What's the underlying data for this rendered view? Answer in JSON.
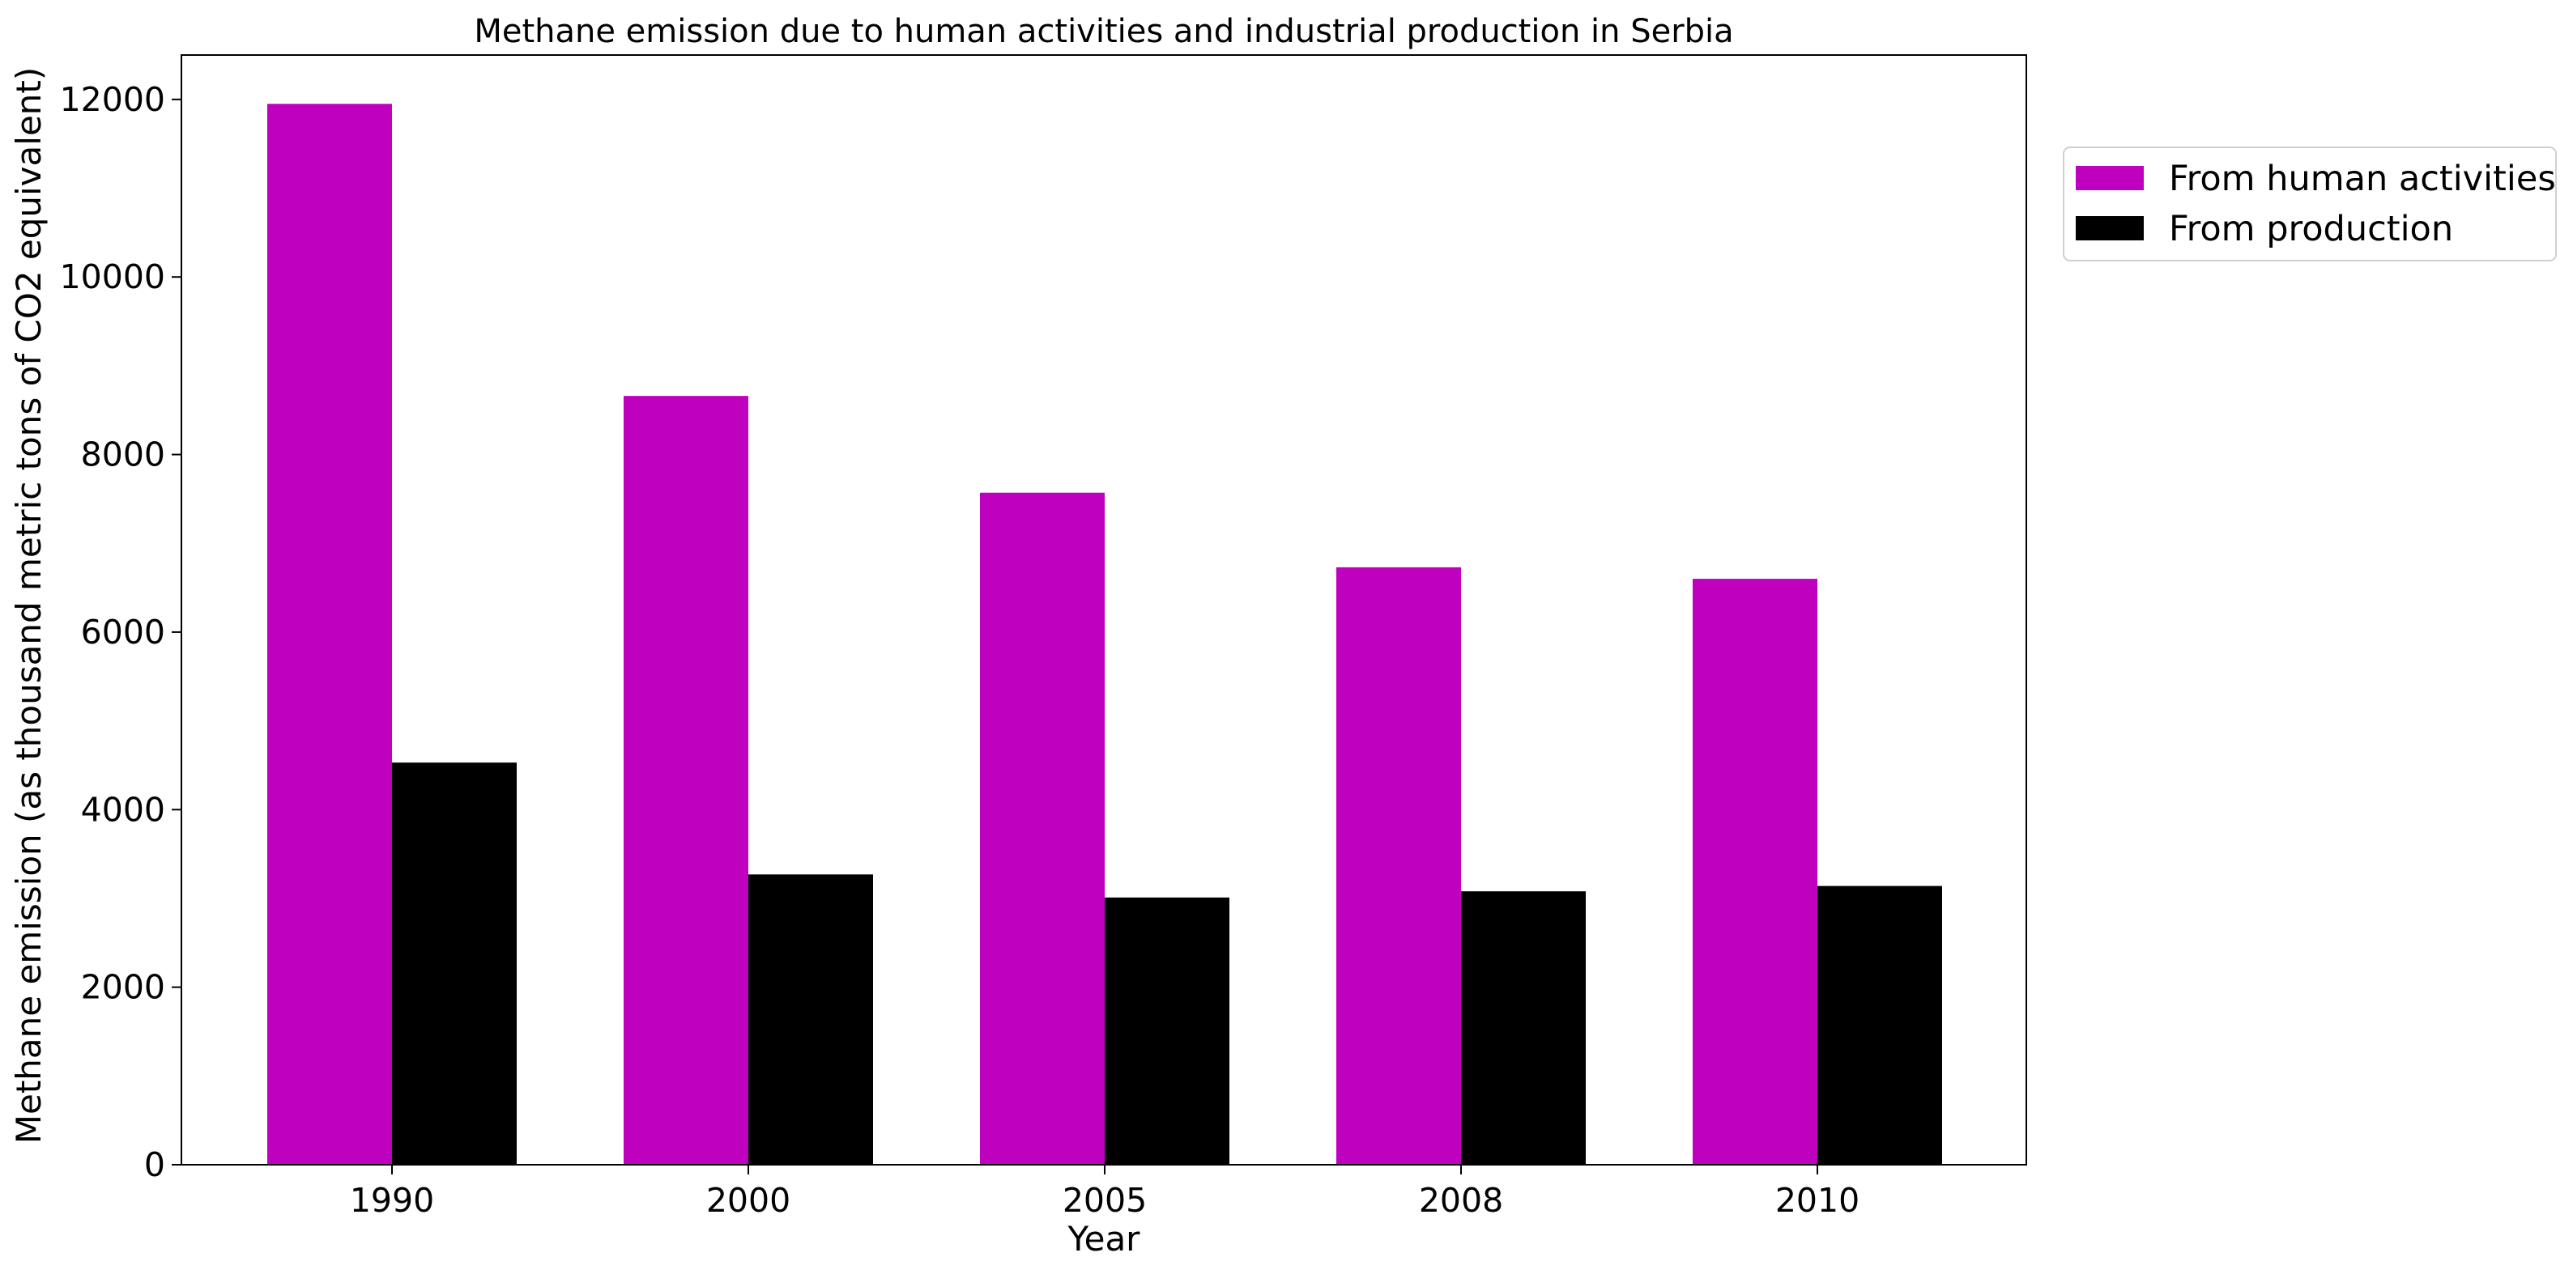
{
  "chart_data": {
    "type": "bar",
    "title": "Methane emission due to human activities and industrial production in Serbia",
    "xlabel": "Year",
    "ylabel": "Methane emission (as thousand metric tons of CO2 equivalent)",
    "categories": [
      "1990",
      "2000",
      "2005",
      "2008",
      "2010"
    ],
    "series": [
      {
        "name": "From human activities",
        "color": "#bf00bf",
        "values": [
          11950,
          8660,
          7570,
          6730,
          6600
        ]
      },
      {
        "name": "From production",
        "color": "#000000",
        "values": [
          4530,
          3270,
          3010,
          3080,
          3140
        ]
      }
    ],
    "ylim": [
      0,
      12500
    ],
    "yticks": [
      0,
      2000,
      4000,
      6000,
      8000,
      10000,
      12000
    ],
    "ytick_labels": [
      "0",
      "2000",
      "4000",
      "6000",
      "8000",
      "10000",
      "12000"
    ],
    "grid": false,
    "legend_position": "outside-upper-right"
  }
}
